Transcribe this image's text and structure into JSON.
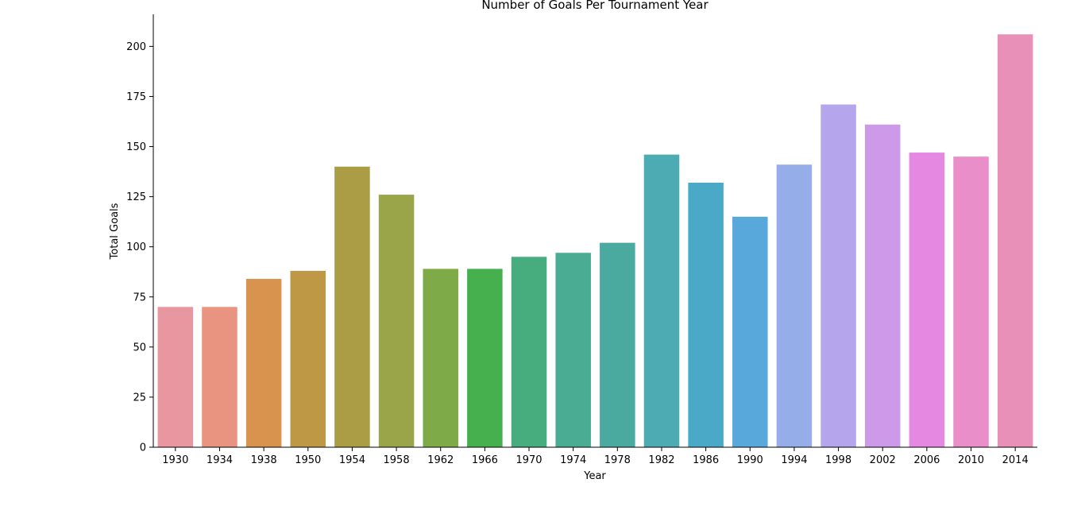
{
  "chart_data": {
    "type": "bar",
    "title": "Number of Goals Per Tournament Year",
    "xlabel": "Year",
    "ylabel": "Total Goals",
    "ylim": [
      0,
      216
    ],
    "yticks": [
      0,
      25,
      50,
      75,
      100,
      125,
      150,
      175,
      200
    ],
    "grid": false,
    "categories": [
      "1930",
      "1934",
      "1938",
      "1950",
      "1954",
      "1958",
      "1962",
      "1966",
      "1970",
      "1974",
      "1978",
      "1982",
      "1986",
      "1990",
      "1994",
      "1998",
      "2002",
      "2006",
      "2010",
      "2014"
    ],
    "values": [
      70,
      70,
      84,
      88,
      140,
      126,
      89,
      89,
      95,
      97,
      102,
      146,
      132,
      115,
      141,
      171,
      161,
      147,
      145,
      206
    ],
    "colors": [
      "#e8969f",
      "#e89481",
      "#d8944e",
      "#be9845",
      "#aa9d45",
      "#9aa448",
      "#7faa48",
      "#46b04f",
      "#48ad7e",
      "#4aad93",
      "#4aaa9f",
      "#4cabb3",
      "#4aa9c7",
      "#58a8dc",
      "#95aee9",
      "#b5a5ec",
      "#cd9ae9",
      "#e488e2",
      "#e98ec9",
      "#e890b8"
    ]
  }
}
